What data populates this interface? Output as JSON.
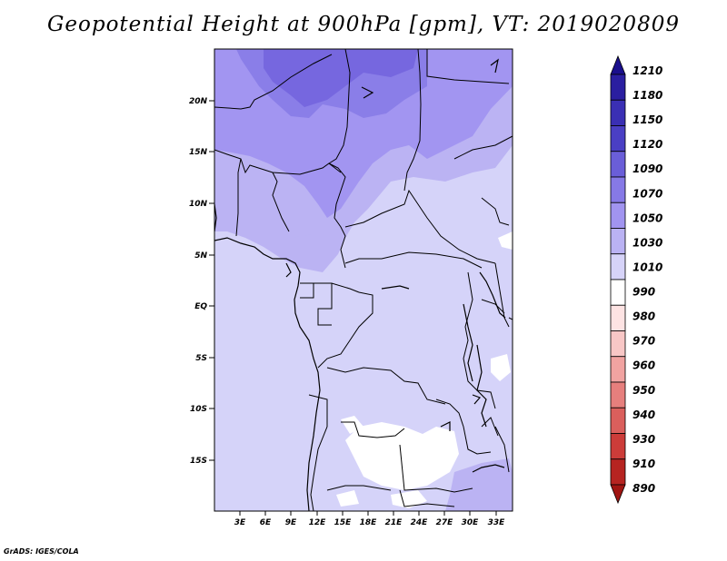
{
  "title": "Geopotential Height at 900hPa [gpm], VT: 2019020809",
  "credit": "GrADS: IGES/COLA",
  "map": {
    "lat_labels": [
      "20N",
      "15N",
      "10N",
      "5N",
      "EQ",
      "5S",
      "10S",
      "15S"
    ],
    "lon_labels": [
      "3E",
      "6E",
      "9E",
      "12E",
      "15E",
      "18E",
      "21E",
      "24E",
      "27E",
      "30E",
      "33E"
    ]
  },
  "colorbar": {
    "levels": [
      "1210",
      "1180",
      "1150",
      "1120",
      "1090",
      "1070",
      "1050",
      "1030",
      "1010",
      "990",
      "980",
      "970",
      "960",
      "950",
      "940",
      "930",
      "910",
      "890"
    ],
    "colors": [
      "#1a0f8c",
      "#2a1ea0",
      "#3a2fb4",
      "#4a3fc4",
      "#6a5ed8",
      "#8679e6",
      "#a194f0",
      "#bab2f3",
      "#d6d3f8",
      "#ffffff",
      "#fde3e3",
      "#f8c7c6",
      "#f1a3a1",
      "#e67f7d",
      "#da5f5c",
      "#cc3c39",
      "#b62421",
      "#a01512"
    ]
  }
}
